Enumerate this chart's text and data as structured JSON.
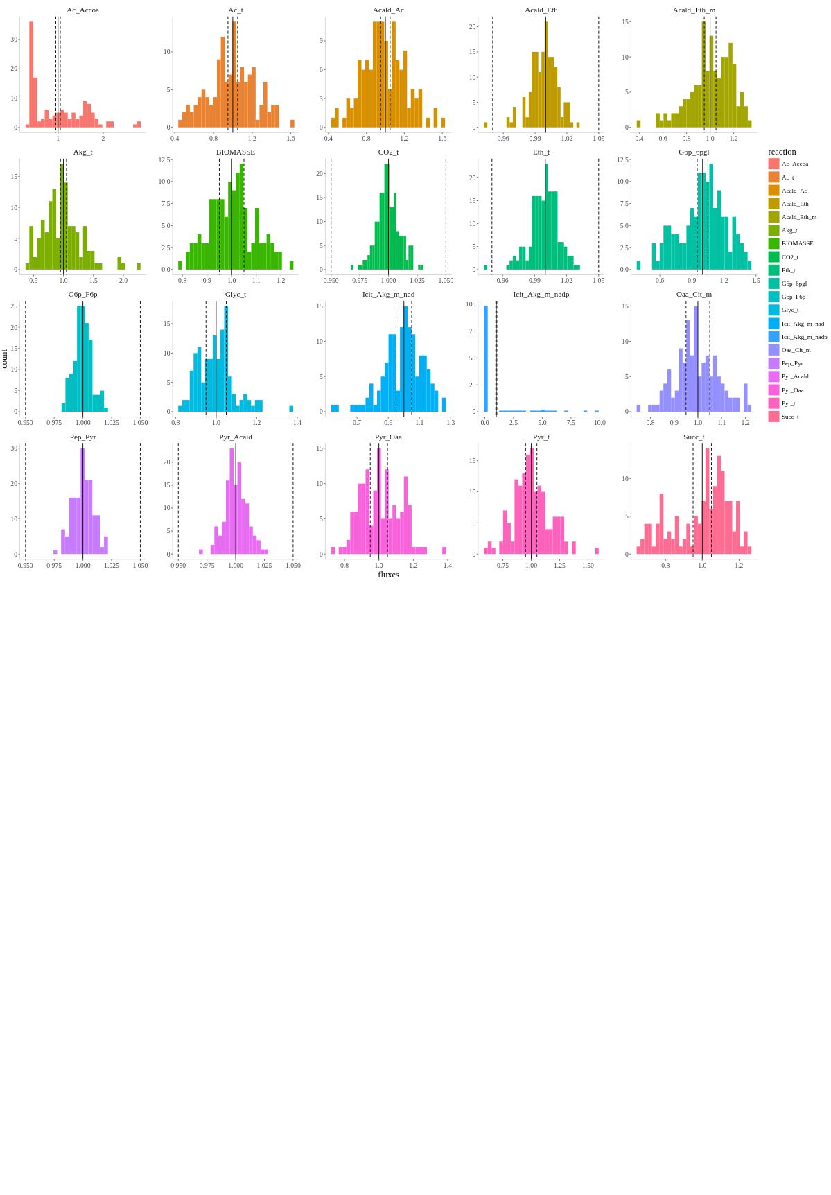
{
  "chart_data": [
    {
      "type": "histogram",
      "title": "Ac_Accoa",
      "legend": "right",
      "legend_title": "reaction",
      "bins": [
        0.28,
        0.365,
        0.45,
        0.535,
        0.62,
        0.705,
        0.79,
        0.875,
        0.96,
        1.045,
        1.13,
        1.215,
        1.3,
        1.385,
        1.47,
        1.555,
        1.64,
        1.725,
        1.81,
        1.895,
        1.98,
        2.065,
        2.15,
        2.235,
        2.32,
        2.405,
        2.49,
        2.575,
        2.66,
        2.745,
        2.83
      ],
      "series": [
        {
          "name": "Ac_Accoa",
          "color": "#F8766D",
          "values": [
            1,
            36,
            17,
            2,
            3,
            6,
            3,
            4,
            5,
            6,
            5,
            3,
            5,
            3,
            4,
            9,
            8,
            5,
            3,
            1,
            0,
            2,
            2,
            0,
            0,
            0,
            0,
            0,
            1,
            2
          ]
        }
      ],
      "xlim": [
        0.153,
        2.947
      ],
      "ylim": [
        -1.8,
        37.8
      ],
      "xticks": [
        1,
        2
      ],
      "yticks": [
        0,
        10,
        20,
        30
      ],
      "ref_lines": [
        {
          "axis": "x",
          "value": 0.95,
          "line_style": "dashed"
        },
        {
          "axis": "x",
          "value": 1,
          "line_style": "solid"
        },
        {
          "axis": "x",
          "value": 1.05,
          "line_style": "dashed"
        }
      ]
    },
    {
      "type": "histogram",
      "title": "Ac_t",
      "bins": [
        0.436,
        0.476,
        0.516,
        0.556,
        0.596,
        0.636,
        0.676,
        0.716,
        0.756,
        0.796,
        0.836,
        0.876,
        0.916,
        0.956,
        0.996,
        1.036,
        1.076,
        1.116,
        1.156,
        1.196,
        1.236,
        1.276,
        1.316,
        1.356,
        1.396,
        1.436,
        1.476,
        1.516,
        1.556,
        1.596,
        1.636
      ],
      "series": [
        {
          "name": "Ac_t",
          "color": "#EA8331",
          "values": [
            1,
            2,
            3,
            2,
            3,
            4,
            5,
            4,
            3,
            4,
            9,
            12,
            6,
            7,
            14,
            6,
            8,
            6,
            7,
            8,
            1,
            3,
            6,
            2,
            3,
            3,
            0,
            0,
            0,
            1
          ]
        }
      ],
      "xlim": [
        0.377,
        1.683
      ],
      "ylim": [
        -0.7,
        14.7
      ],
      "xticks": [
        0.4,
        0.8,
        1.2,
        1.6
      ],
      "yticks": [
        0,
        5,
        10
      ],
      "ref_lines": [
        {
          "axis": "x",
          "value": 0.95,
          "line_style": "dashed"
        },
        {
          "axis": "x",
          "value": 1,
          "line_style": "solid"
        },
        {
          "axis": "x",
          "value": 1.05,
          "line_style": "dashed"
        }
      ]
    },
    {
      "type": "histogram",
      "title": "Acald_Ac",
      "bins": [
        0.428,
        0.468,
        0.508,
        0.548,
        0.588,
        0.628,
        0.668,
        0.708,
        0.748,
        0.788,
        0.828,
        0.868,
        0.908,
        0.948,
        0.988,
        1.028,
        1.068,
        1.108,
        1.148,
        1.188,
        1.228,
        1.268,
        1.308,
        1.348,
        1.388,
        1.428,
        1.468,
        1.508,
        1.548,
        1.588,
        1.628
      ],
      "series": [
        {
          "name": "Acald_Ac",
          "color": "#D89000",
          "values": [
            1,
            2,
            0,
            1,
            3,
            2,
            3,
            7,
            6,
            7,
            6,
            11,
            11,
            11,
            9,
            4,
            11,
            7,
            6,
            8,
            2,
            4,
            3,
            4,
            0,
            1,
            0,
            2,
            0,
            1
          ]
        }
      ],
      "xlim": [
        0.368,
        1.698
      ],
      "ylim": [
        -0.55,
        11.55
      ],
      "xticks": [
        0.4,
        0.8,
        1.2,
        1.6
      ],
      "yticks": [
        0,
        3,
        6,
        9
      ],
      "ref_lines": [
        {
          "axis": "x",
          "value": 0.95,
          "line_style": "dashed"
        },
        {
          "axis": "x",
          "value": 1,
          "line_style": "solid"
        },
        {
          "axis": "x",
          "value": 1.05,
          "line_style": "dashed"
        }
      ]
    },
    {
      "type": "histogram",
      "title": "Acald_Eth",
      "bins": [
        0.942,
        0.945,
        0.948,
        0.951,
        0.954,
        0.957,
        0.96,
        0.963,
        0.966,
        0.969,
        0.972,
        0.975,
        0.978,
        0.981,
        0.984,
        0.987,
        0.99,
        0.993,
        0.996,
        0.999,
        1.002,
        1.005,
        1.008,
        1.011,
        1.014,
        1.017,
        1.02,
        1.023,
        1.026,
        1.029,
        1.032
      ],
      "series": [
        {
          "name": "Acald_Eth",
          "color": "#C09B00",
          "values": [
            1,
            0,
            0,
            0,
            0,
            0,
            0,
            2,
            1,
            4,
            0,
            0,
            6,
            2,
            7,
            15,
            15,
            11,
            15,
            21,
            14,
            14,
            12,
            8,
            2,
            5,
            5,
            1,
            0,
            1
          ]
        }
      ],
      "xlim": [
        0.9363,
        1.0554
      ],
      "ylim": [
        -1.05,
        22.05
      ],
      "xticks": [
        0.96,
        0.99,
        1.02,
        1.05
      ],
      "yticks": [
        0,
        5,
        10,
        15,
        20
      ],
      "ref_lines": [
        {
          "axis": "x",
          "value": 0.95,
          "line_style": "dashed"
        },
        {
          "axis": "x",
          "value": 1,
          "line_style": "solid"
        },
        {
          "axis": "x",
          "value": 1.05,
          "line_style": "dashed"
        }
      ]
    },
    {
      "type": "histogram",
      "title": "Acald_Eth_m",
      "bins": [
        0.377,
        0.4095,
        0.442,
        0.4745,
        0.507,
        0.5395,
        0.572,
        0.6045,
        0.637,
        0.6695,
        0.702,
        0.7345,
        0.767,
        0.7995,
        0.832,
        0.8645,
        0.897,
        0.9295,
        0.962,
        0.9945,
        1.027,
        1.0595,
        1.092,
        1.1245,
        1.157,
        1.1895,
        1.222,
        1.2545,
        1.287,
        1.3195,
        1.352
      ],
      "series": [
        {
          "name": "Acald_Eth_m",
          "color": "#A3A500",
          "values": [
            1,
            0,
            0,
            0,
            0,
            2,
            1,
            2,
            1,
            2,
            2,
            3,
            4,
            4,
            5,
            6,
            6,
            15,
            8,
            13,
            8,
            7,
            10,
            10,
            12,
            9,
            3,
            5,
            3,
            1
          ]
        }
      ],
      "xlim": [
        0.328,
        1.4
      ],
      "ylim": [
        -0.75,
        15.75
      ],
      "xticks": [
        0.4,
        0.6,
        0.8,
        {
          "value": 1,
          "label": "1.0"
        },
        1.2
      ],
      "yticks": [
        0,
        5,
        10,
        15
      ],
      "ref_lines": [
        {
          "axis": "x",
          "value": 0.95,
          "line_style": "dashed"
        },
        {
          "axis": "x",
          "value": 1,
          "line_style": "solid"
        },
        {
          "axis": "x",
          "value": 1.05,
          "line_style": "dashed"
        }
      ]
    },
    {
      "type": "histogram",
      "title": "Akg_t",
      "bins": [
        0.366,
        0.43,
        0.494,
        0.558,
        0.622,
        0.686,
        0.75,
        0.814,
        0.878,
        0.942,
        1.006,
        1.07,
        1.134,
        1.198,
        1.262,
        1.326,
        1.39,
        1.454,
        1.518,
        1.582,
        1.646,
        1.71,
        1.774,
        1.838,
        1.902,
        1.966,
        2.03,
        2.094,
        2.158,
        2.222,
        2.286
      ],
      "series": [
        {
          "name": "Akg_t",
          "color": "#7CAE00",
          "values": [
            1,
            7,
            2,
            5,
            8,
            6,
            11,
            13,
            5,
            17,
            14,
            7,
            7,
            6,
            2,
            7,
            3,
            3,
            1,
            1,
            0,
            0,
            0,
            0,
            2,
            1,
            0,
            0,
            0,
            1
          ]
        }
      ],
      "xlim": [
        0.27,
        2.379
      ],
      "ylim": [
        -0.85,
        17.85
      ],
      "xticks": [
        0.5,
        {
          "value": 1,
          "label": "1.0"
        },
        1.5,
        {
          "value": 2,
          "label": "2.0"
        }
      ],
      "yticks": [
        0,
        5,
        10,
        15
      ],
      "ref_lines": [
        {
          "axis": "x",
          "value": 0.95,
          "line_style": "dashed"
        },
        {
          "axis": "x",
          "value": 1,
          "line_style": "solid"
        },
        {
          "axis": "x",
          "value": 1.05,
          "line_style": "dashed"
        }
      ]
    },
    {
      "type": "histogram",
      "title": "BIOMASSE",
      "bins": [
        0.783,
        0.7986,
        0.8142,
        0.8298,
        0.8454,
        0.861,
        0.8766,
        0.8922,
        0.9078,
        0.9234,
        0.939,
        0.9546,
        0.9702,
        0.9858,
        1.0014,
        1.017,
        1.0326,
        1.0482,
        1.0638,
        1.0794,
        1.095,
        1.1106,
        1.1262,
        1.1418,
        1.1574,
        1.173,
        1.1886,
        1.2042,
        1.2198,
        1.2354,
        1.251
      ],
      "series": [
        {
          "name": "BIOMASSE",
          "color": "#39B600",
          "values": [
            1,
            0,
            2,
            3,
            3,
            4,
            3,
            3,
            8,
            8,
            8,
            8,
            6,
            10,
            9,
            11,
            12,
            7,
            2,
            3,
            7,
            3,
            3,
            4,
            3,
            2,
            2,
            0,
            0,
            1
          ]
        }
      ],
      "xlim": [
        0.76,
        1.273
      ],
      "ylim": [
        -0.6,
        12.6
      ],
      "xticks": [
        0.8,
        0.9,
        {
          "value": 1,
          "label": "1.0"
        },
        1.1,
        1.2
      ],
      "yticks": [
        {
          "value": 0,
          "label": "0.0"
        },
        2.5,
        {
          "value": 5,
          "label": "5.0"
        },
        7.5,
        {
          "value": 10,
          "label": "10.0"
        },
        12.5
      ],
      "ref_lines": [
        {
          "axis": "x",
          "value": 0.95,
          "line_style": "dashed"
        },
        {
          "axis": "x",
          "value": 1,
          "line_style": "solid"
        },
        {
          "axis": "x",
          "value": 1.05,
          "line_style": "dashed"
        }
      ]
    },
    {
      "type": "histogram",
      "title": "CO2_t",
      "bins": [
        0.967,
        0.9691,
        0.9712,
        0.9733,
        0.9754,
        0.9775,
        0.9796,
        0.9817,
        0.9838,
        0.9859,
        0.988,
        0.9901,
        0.9922,
        0.9943,
        0.9964,
        0.9985,
        1.0006,
        1.0027,
        1.0048,
        1.0069,
        1.009,
        1.0111,
        1.0132,
        1.0153,
        1.0174,
        1.0195,
        1.0216,
        1.0237,
        1.0258,
        1.0279,
        1.03
      ],
      "series": [
        {
          "name": "CO2_t",
          "color": "#00BB4E",
          "values": [
            1,
            0,
            0,
            1,
            1,
            2,
            2,
            3,
            5,
            5,
            10,
            10,
            16,
            16,
            22,
            22,
            13,
            13,
            16,
            8,
            7,
            7,
            7,
            2,
            5,
            5,
            0,
            0,
            1,
            1
          ]
        }
      ],
      "xlim": [
        0.945,
        1.055
      ],
      "ylim": [
        -1.1,
        23.1
      ],
      "xticks": [
        {
          "value": 0.95,
          "label": "0.950"
        },
        {
          "value": 0.975,
          "label": "0.975"
        },
        {
          "value": 1,
          "label": "1.000"
        },
        {
          "value": 1.025,
          "label": "1.025"
        },
        {
          "value": 1.05,
          "label": "1.050"
        }
      ],
      "yticks": [
        0,
        5,
        10,
        15,
        20
      ],
      "ref_lines": [
        {
          "axis": "x",
          "value": 0.95,
          "line_style": "dashed"
        },
        {
          "axis": "x",
          "value": 1,
          "line_style": "solid"
        },
        {
          "axis": "x",
          "value": 1.05,
          "line_style": "dashed"
        }
      ]
    },
    {
      "type": "histogram",
      "title": "Eth_t",
      "bins": [
        0.9425,
        0.9455,
        0.9485,
        0.9515,
        0.9545,
        0.9575,
        0.9605,
        0.9635,
        0.9665,
        0.9695,
        0.9725,
        0.9755,
        0.9785,
        0.9815,
        0.9845,
        0.9875,
        0.9905,
        0.9935,
        0.9965,
        0.9995,
        1.0025,
        1.0055,
        1.0085,
        1.0115,
        1.0145,
        1.0175,
        1.0205,
        1.0235,
        1.0265,
        1.0295,
        1.0325
      ],
      "series": [
        {
          "name": "Eth_t",
          "color": "#00BF7D",
          "values": [
            1,
            0,
            0,
            0,
            0,
            0,
            0,
            1,
            2,
            3,
            2,
            5,
            5,
            2,
            5,
            16,
            16,
            16,
            15,
            23,
            17,
            17,
            17,
            6,
            6,
            5,
            3,
            3,
            1,
            1
          ]
        }
      ],
      "xlim": [
        0.9371,
        1.0554
      ],
      "ylim": [
        -1.15,
        24.15
      ],
      "xticks": [
        0.96,
        0.99,
        1.02,
        1.05
      ],
      "yticks": [
        0,
        5,
        10,
        15,
        20
      ],
      "ref_lines": [
        {
          "axis": "x",
          "value": 0.95,
          "line_style": "dashed"
        },
        {
          "axis": "x",
          "value": 1,
          "line_style": "solid"
        },
        {
          "axis": "x",
          "value": 1.05,
          "line_style": "dashed"
        }
      ]
    },
    {
      "type": "histogram",
      "title": "G6p_6pgl",
      "bins": [
        0.383,
        0.4188,
        0.4546,
        0.4904,
        0.5262,
        0.562,
        0.5978,
        0.6336,
        0.6694,
        0.7052,
        0.741,
        0.7768,
        0.8126,
        0.8484,
        0.8842,
        0.92,
        0.9558,
        0.9916,
        1.0274,
        1.0632,
        1.099,
        1.1348,
        1.1706,
        1.2064,
        1.2422,
        1.278,
        1.3138,
        1.3496,
        1.3854,
        1.4212,
        1.457
      ],
      "series": [
        {
          "name": "G6p_6pgl",
          "color": "#00C1A3",
          "values": [
            1,
            0,
            0,
            0,
            3,
            1,
            3,
            5,
            5,
            4,
            4,
            3,
            3,
            5,
            7,
            6,
            11,
            11,
            10,
            12,
            7,
            9,
            6,
            6,
            2,
            6,
            4,
            3,
            2,
            1
          ]
        }
      ],
      "xlim": [
        0.329,
        1.512
      ],
      "ylim": [
        -0.6,
        12.6
      ],
      "xticks": [
        0.6,
        0.9,
        1.2,
        1.5
      ],
      "yticks": [
        {
          "value": 0,
          "label": "0.0"
        },
        2.5,
        {
          "value": 5,
          "label": "5.0"
        },
        7.5,
        {
          "value": 10,
          "label": "10.0"
        },
        12.5
      ],
      "ref_lines": [
        {
          "axis": "x",
          "value": 0.95,
          "line_style": "dashed"
        },
        {
          "axis": "x",
          "value": 1,
          "line_style": "solid"
        },
        {
          "axis": "x",
          "value": 1.05,
          "line_style": "dashed"
        }
      ]
    },
    {
      "type": "histogram",
      "title": "G6p_F6p",
      "ylabel": "count",
      "bins": [
        0.9814,
        0.98477,
        0.98813,
        0.9915,
        0.99487,
        0.99823,
        1.0016,
        1.00497,
        1.00833,
        1.0117,
        1.01507,
        1.01843,
        1.0218
      ],
      "series": [
        {
          "name": "G6p_F6p",
          "color": "#00BFC4",
          "values": [
            2,
            8,
            9,
            12,
            25,
            25,
            21,
            17,
            4,
            4,
            5,
            1
          ]
        }
      ],
      "xlim": [
        0.945,
        1.055
      ],
      "ylim": [
        -1.25,
        26.25
      ],
      "xticks": [
        {
          "value": 0.95,
          "label": "0.950"
        },
        {
          "value": 0.975,
          "label": "0.975"
        },
        {
          "value": 1,
          "label": "1.000"
        },
        {
          "value": 1.025,
          "label": "1.025"
        },
        {
          "value": 1.05,
          "label": "1.050"
        }
      ],
      "yticks": [
        0,
        5,
        10,
        15,
        20,
        25
      ],
      "ref_lines": [
        {
          "axis": "x",
          "value": 0.95,
          "line_style": "dashed"
        },
        {
          "axis": "x",
          "value": 1,
          "line_style": "solid"
        },
        {
          "axis": "x",
          "value": 1.05,
          "line_style": "dashed"
        }
      ]
    },
    {
      "type": "histogram",
      "title": "Glyc_t",
      "bins": [
        0.813,
        0.8319,
        0.8508,
        0.8697,
        0.8886,
        0.9075,
        0.9264,
        0.9453,
        0.9642,
        0.9831,
        1.002,
        1.0209,
        1.0398,
        1.0587,
        1.0776,
        1.0965,
        1.1154,
        1.1343,
        1.1532,
        1.1721,
        1.191,
        1.2099,
        1.2288,
        1.2477,
        1.2666,
        1.2855,
        1.3044,
        1.3233,
        1.3422,
        1.3611,
        1.38
      ],
      "series": [
        {
          "name": "Glyc_t",
          "color": "#00BAE0",
          "values": [
            1,
            2,
            2,
            7,
            10,
            11,
            5,
            9,
            9,
            13,
            9,
            14,
            18,
            6,
            3,
            1,
            2,
            3,
            2,
            1,
            2,
            2,
            0,
            0,
            0,
            0,
            0,
            0,
            0,
            1
          ]
        }
      ],
      "xlim": [
        0.785,
        1.408
      ],
      "ylim": [
        -0.9,
        18.9
      ],
      "xticks": [
        0.8,
        {
          "value": 1,
          "label": "1.0"
        },
        1.2,
        1.4
      ],
      "yticks": [
        0,
        5,
        10,
        15
      ],
      "ref_lines": [
        {
          "axis": "x",
          "value": 0.95,
          "line_style": "dashed"
        },
        {
          "axis": "x",
          "value": 1,
          "line_style": "solid"
        },
        {
          "axis": "x",
          "value": 1.05,
          "line_style": "dashed"
        }
      ]
    },
    {
      "type": "histogram",
      "title": "Icit_Akg_m_nad",
      "bins": [
        0.534,
        0.5585,
        0.583,
        0.6075,
        0.632,
        0.6565,
        0.681,
        0.7055,
        0.73,
        0.7545,
        0.779,
        0.8035,
        0.828,
        0.8525,
        0.877,
        0.9015,
        0.926,
        0.9505,
        0.975,
        0.9995,
        1.024,
        1.0485,
        1.073,
        1.0975,
        1.122,
        1.1465,
        1.171,
        1.1955,
        1.22,
        1.2445,
        1.269
      ],
      "series": [
        {
          "name": "Icit_Akg_m_nad",
          "color": "#00B0F6",
          "values": [
            1,
            1,
            0,
            0,
            0,
            1,
            1,
            1,
            1,
            2,
            4,
            1,
            3,
            5,
            7,
            11,
            11,
            3,
            12,
            15,
            12,
            11,
            5,
            8,
            8,
            6,
            4,
            3,
            0,
            2
          ]
        }
      ],
      "xlim": [
        0.497,
        1.306
      ],
      "ylim": [
        -0.75,
        15.75
      ],
      "xticks": [
        0.7,
        0.9,
        1.1,
        1.3
      ],
      "yticks": [
        0,
        5,
        10,
        15
      ],
      "ref_lines": [
        {
          "axis": "x",
          "value": 0.95,
          "line_style": "dashed"
        },
        {
          "axis": "x",
          "value": 1,
          "line_style": "solid"
        },
        {
          "axis": "x",
          "value": 1.05,
          "line_style": "dashed"
        }
      ]
    },
    {
      "type": "histogram",
      "title": "Icit_Akg_m_nadp",
      "bins": [
        -0.08,
        0.253,
        0.586,
        0.919,
        1.252,
        1.585,
        1.918,
        2.251,
        2.584,
        2.917,
        3.25,
        3.583,
        3.916,
        4.249,
        4.582,
        4.915,
        5.248,
        5.581,
        5.914,
        6.247,
        6.58,
        6.913,
        7.246,
        7.579,
        7.912,
        8.245,
        8.578,
        8.911,
        9.244,
        9.577,
        9.91
      ],
      "series": [
        {
          "name": "Icit_Akg_m_nadp",
          "color": "#35A2FF",
          "values": [
            98,
            0,
            0,
            0,
            1,
            1,
            1,
            1,
            1,
            1,
            1,
            0,
            1,
            1,
            1,
            2,
            1,
            1,
            1,
            0,
            0,
            1,
            0,
            0,
            0,
            0,
            1,
            0,
            0,
            1
          ]
        }
      ],
      "xlim": [
        -0.579,
        10.409
      ],
      "ylim": [
        -4.9,
        102.9
      ],
      "xticks": [
        {
          "value": 0,
          "label": "0.0"
        },
        2.5,
        {
          "value": 5,
          "label": "5.0"
        },
        7.5,
        {
          "value": 10,
          "label": "10.0"
        }
      ],
      "yticks": [
        0,
        25,
        50,
        75,
        100
      ],
      "ref_lines": [
        {
          "axis": "x",
          "value": 0.95,
          "line_style": "dashed"
        },
        {
          "axis": "x",
          "value": 1,
          "line_style": "solid"
        },
        {
          "axis": "x",
          "value": 1.05,
          "line_style": "dashed"
        }
      ]
    },
    {
      "type": "histogram",
      "title": "Oaa_Cit_m",
      "bins": [
        0.742,
        0.7581,
        0.7742,
        0.7903,
        0.8064,
        0.8225,
        0.8386,
        0.8547,
        0.8708,
        0.8869,
        0.903,
        0.9191,
        0.9352,
        0.9513,
        0.9674,
        0.9835,
        0.9996,
        1.0157,
        1.0318,
        1.0479,
        1.064,
        1.0801,
        1.0962,
        1.1123,
        1.1284,
        1.1445,
        1.1606,
        1.1767,
        1.1928,
        1.2089,
        1.225
      ],
      "series": [
        {
          "name": "Oaa_Cit_m",
          "color": "#9590FF",
          "values": [
            1,
            0,
            0,
            1,
            1,
            1,
            3,
            4,
            6,
            2,
            3,
            9,
            7,
            13,
            8,
            15,
            5,
            7,
            8,
            5,
            8,
            5,
            4,
            3,
            2,
            2,
            2,
            0,
            4,
            1
          ]
        }
      ],
      "xlim": [
        0.718,
        1.25
      ],
      "ylim": [
        -0.75,
        15.75
      ],
      "xticks": [
        0.8,
        0.9,
        {
          "value": 1,
          "label": "1.0"
        },
        1.1,
        1.2
      ],
      "yticks": [
        0,
        5,
        10,
        15
      ],
      "ref_lines": [
        {
          "axis": "x",
          "value": 0.95,
          "line_style": "dashed"
        },
        {
          "axis": "x",
          "value": 1,
          "line_style": "solid"
        },
        {
          "axis": "x",
          "value": 1.05,
          "line_style": "dashed"
        }
      ]
    },
    {
      "type": "histogram",
      "title": "Pep_Pyr",
      "bins": [
        0.9742,
        0.9776,
        0.981,
        0.9844,
        0.9878,
        0.9912,
        0.9946,
        0.998,
        1.0014,
        1.0048,
        1.0082,
        1.0116,
        1.015,
        1.0184,
        1.0218
      ],
      "series": [
        {
          "name": "Pep_Pyr",
          "color": "#C77CFF",
          "values": [
            1,
            0,
            7,
            5,
            16,
            16,
            16,
            30,
            21,
            21,
            11,
            11,
            2,
            5
          ]
        }
      ],
      "xlim": [
        0.945,
        1.055
      ],
      "ylim": [
        -1.5,
        31.5
      ],
      "xticks": [
        {
          "value": 0.95,
          "label": "0.950"
        },
        {
          "value": 0.975,
          "label": "0.975"
        },
        {
          "value": 1,
          "label": "1.000"
        },
        {
          "value": 1.025,
          "label": "1.025"
        },
        {
          "value": 1.05,
          "label": "1.050"
        }
      ],
      "yticks": [
        0,
        10,
        20,
        30
      ],
      "ref_lines": [
        {
          "axis": "x",
          "value": 0.95,
          "line_style": "dashed"
        },
        {
          "axis": "x",
          "value": 1,
          "line_style": "solid"
        },
        {
          "axis": "x",
          "value": 1.05,
          "line_style": "dashed"
        }
      ]
    },
    {
      "type": "histogram",
      "title": "Pyr_Acald",
      "bins": [
        0.968,
        0.97135,
        0.9747,
        0.97805,
        0.9814,
        0.98475,
        0.9881,
        0.99145,
        0.9948,
        0.99815,
        1.0015,
        1.00485,
        1.0082,
        1.01155,
        1.0149,
        1.01825,
        1.0216,
        1.02495,
        1.0283
      ],
      "series": [
        {
          "name": "Pyr_Acald",
          "color": "#E76BF3",
          "values": [
            1,
            0,
            0,
            2,
            6,
            4,
            7,
            16,
            23,
            15,
            20,
            12,
            11,
            6,
            4,
            3,
            1,
            1
          ]
        }
      ],
      "xlim": [
        0.945,
        1.055
      ],
      "ylim": [
        -1.15,
        24.15
      ],
      "xticks": [
        {
          "value": 0.95,
          "label": "0.950"
        },
        {
          "value": 0.975,
          "label": "0.975"
        },
        {
          "value": 1,
          "label": "1.000"
        },
        {
          "value": 1.025,
          "label": "1.025"
        },
        {
          "value": 1.05,
          "label": "1.050"
        }
      ],
      "yticks": [
        0,
        5,
        10,
        15,
        20
      ],
      "ref_lines": [
        {
          "axis": "x",
          "value": 0.95,
          "line_style": "dashed"
        },
        {
          "axis": "x",
          "value": 1,
          "line_style": "solid"
        },
        {
          "axis": "x",
          "value": 1.05,
          "line_style": "dashed"
        }
      ]
    },
    {
      "type": "histogram",
      "title": "Pyr_Oaa",
      "xlabel": "fluxes",
      "bins": [
        0.722,
        0.7443,
        0.7666,
        0.7889,
        0.8112,
        0.8335,
        0.8558,
        0.8781,
        0.9004,
        0.9227,
        0.945,
        0.9673,
        0.9896,
        1.0119,
        1.0342,
        1.0565,
        1.0788,
        1.1011,
        1.1234,
        1.1457,
        1.168,
        1.1903,
        1.2126,
        1.2349,
        1.2572,
        1.2795,
        1.3018,
        1.3241,
        1.3464,
        1.3687,
        1.391
      ],
      "series": [
        {
          "name": "Pyr_Oaa",
          "color": "#FA62DB",
          "values": [
            1,
            0,
            1,
            1,
            2,
            6,
            6,
            10,
            10,
            12,
            4,
            9,
            15,
            5,
            12,
            5,
            7,
            5,
            6,
            11,
            7,
            1,
            1,
            1,
            1,
            0,
            0,
            0,
            0,
            1
          ]
        }
      ],
      "xlim": [
        0.689,
        1.423
      ],
      "ylim": [
        -0.75,
        15.75
      ],
      "xticks": [
        0.8,
        {
          "value": 1,
          "label": "1.0"
        },
        1.2,
        1.4
      ],
      "yticks": [
        0,
        5,
        10,
        15
      ],
      "ref_lines": [
        {
          "axis": "x",
          "value": 0.95,
          "line_style": "dashed"
        },
        {
          "axis": "x",
          "value": 1,
          "line_style": "solid"
        },
        {
          "axis": "x",
          "value": 1.05,
          "line_style": "dashed"
        }
      ]
    },
    {
      "type": "histogram",
      "title": "Pyr_t",
      "bins": [
        0.583,
        0.6167,
        0.6504,
        0.6841,
        0.7178,
        0.7515,
        0.7852,
        0.8189,
        0.8526,
        0.8863,
        0.92,
        0.9537,
        0.9874,
        1.0211,
        1.0548,
        1.0885,
        1.1222,
        1.1559,
        1.1896,
        1.2233,
        1.257,
        1.2907,
        1.3244,
        1.3581,
        1.3918,
        1.4255,
        1.4592,
        1.4929,
        1.5266,
        1.5603,
        1.594
      ],
      "series": [
        {
          "name": "Pyr_t",
          "color": "#FF62BC",
          "values": [
            1,
            2,
            1,
            0,
            2,
            7,
            5,
            2,
            12,
            11,
            13,
            16,
            17,
            10,
            11,
            10,
            4,
            4,
            6,
            6,
            6,
            2,
            0,
            2,
            0,
            0,
            0,
            0,
            0,
            1
          ]
        }
      ],
      "xlim": [
        0.532,
        1.645
      ],
      "ylim": [
        -0.85,
        17.85
      ],
      "xticks": [
        0.75,
        {
          "value": 1,
          "label": "1.00"
        },
        1.25,
        {
          "value": 1.5,
          "label": "1.50"
        }
      ],
      "yticks": [
        0,
        5,
        10,
        15
      ],
      "ref_lines": [
        {
          "axis": "x",
          "value": 0.95,
          "line_style": "dashed"
        },
        {
          "axis": "x",
          "value": 1,
          "line_style": "solid"
        },
        {
          "axis": "x",
          "value": 1.05,
          "line_style": "dashed"
        }
      ]
    },
    {
      "type": "histogram",
      "title": "Succ_t",
      "bins": [
        0.643,
        0.6638,
        0.6846,
        0.7054,
        0.7262,
        0.747,
        0.7678,
        0.7886,
        0.8094,
        0.8302,
        0.851,
        0.8718,
        0.8926,
        0.9134,
        0.9342,
        0.955,
        0.9758,
        0.9966,
        1.0174,
        1.0382,
        1.059,
        1.0798,
        1.1006,
        1.1214,
        1.1422,
        1.163,
        1.1838,
        1.2046,
        1.2254,
        1.2462,
        1.267
      ],
      "series": [
        {
          "name": "Succ_t",
          "color": "#FF6C91",
          "values": [
            1,
            2,
            4,
            4,
            1,
            4,
            8,
            2,
            3,
            2,
            5,
            1,
            2,
            4,
            1,
            5,
            4,
            7,
            14,
            6,
            9,
            13,
            11,
            7,
            7,
            3,
            7,
            1,
            3,
            1
          ]
        }
      ],
      "xlim": [
        0.612,
        1.299
      ],
      "ylim": [
        -0.7,
        14.7
      ],
      "xticks": [
        0.8,
        {
          "value": 1,
          "label": "1.0"
        },
        1.2
      ],
      "yticks": [
        0,
        5,
        10
      ],
      "ref_lines": [
        {
          "axis": "x",
          "value": 0.95,
          "line_style": "dashed"
        },
        {
          "axis": "x",
          "value": 1,
          "line_style": "solid"
        },
        {
          "axis": "x",
          "value": 1.05,
          "line_style": "dashed"
        }
      ]
    }
  ]
}
